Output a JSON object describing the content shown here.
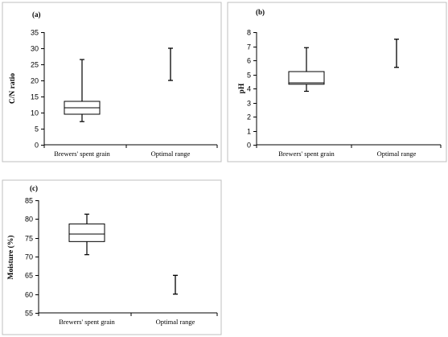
{
  "chart_data": [
    {
      "type": "box",
      "panel_label": "(a)",
      "ylabel": "C/N ratio",
      "ylim": [
        0,
        35
      ],
      "yticks": [
        0,
        5,
        10,
        15,
        20,
        25,
        30,
        35
      ],
      "categories": [
        "Brewers' spent grain",
        "Optimal range"
      ],
      "boxes": [
        {
          "category": "Brewers' spent grain",
          "min": 7.2,
          "q1": 9.5,
          "median": 11.5,
          "q3": 13.5,
          "max": 26.5
        }
      ],
      "ranges": [
        {
          "category": "Optimal range",
          "low": 20,
          "high": 30
        }
      ]
    },
    {
      "type": "box",
      "panel_label": "(b)",
      "ylabel": "pH",
      "ylim": [
        0,
        8
      ],
      "yticks": [
        0,
        1,
        2,
        3,
        4,
        5,
        6,
        7,
        8
      ],
      "categories": [
        "Brewers' spent grain",
        "Optimal range"
      ],
      "boxes": [
        {
          "category": "Brewers' spent grain",
          "min": 3.8,
          "q1": 4.3,
          "median": 4.4,
          "q3": 5.2,
          "max": 6.9
        }
      ],
      "ranges": [
        {
          "category": "Optimal range",
          "low": 5.5,
          "high": 7.5
        }
      ]
    },
    {
      "type": "box",
      "panel_label": "(c)",
      "ylabel": "Moisture (%)",
      "ylim": [
        55,
        85
      ],
      "yticks": [
        55,
        60,
        65,
        70,
        75,
        80,
        85
      ],
      "categories": [
        "Brewers' spent grain",
        "Optimal range"
      ],
      "boxes": [
        {
          "category": "Brewers' spent grain",
          "min": 70.5,
          "q1": 74.0,
          "median": 76.0,
          "q3": 78.7,
          "max": 81.3
        }
      ],
      "ranges": [
        {
          "category": "Optimal range",
          "low": 60,
          "high": 65
        }
      ]
    }
  ]
}
